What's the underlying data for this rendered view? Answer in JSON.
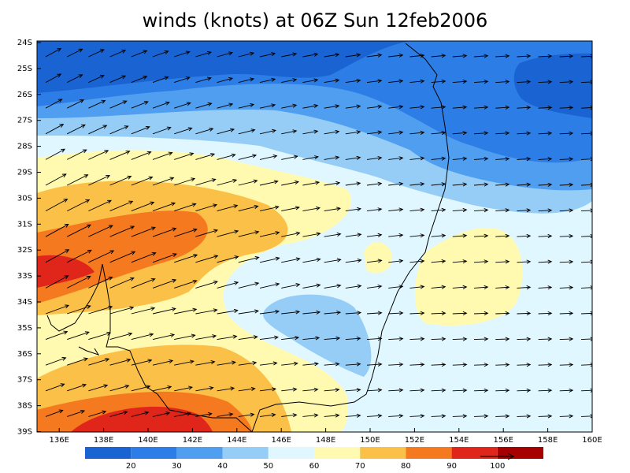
{
  "title": "winds (knots) at 06Z Sun 12feb2006",
  "lat_labels": [
    "24S",
    "25S",
    "26S",
    "27S",
    "28S",
    "29S",
    "30S",
    "31S",
    "32S",
    "33S",
    "34S",
    "35S",
    "36S",
    "37S",
    "38S",
    "39S"
  ],
  "lon_labels": [
    "136E",
    "138E",
    "140E",
    "142E",
    "144E",
    "146E",
    "148E",
    "150E",
    "152E",
    "154E",
    "156E",
    "158E",
    "160E"
  ],
  "colorbar": {
    "labels": [
      "20",
      "30",
      "40",
      "50",
      "60",
      "70",
      "80",
      "90",
      "100"
    ]
  }
}
